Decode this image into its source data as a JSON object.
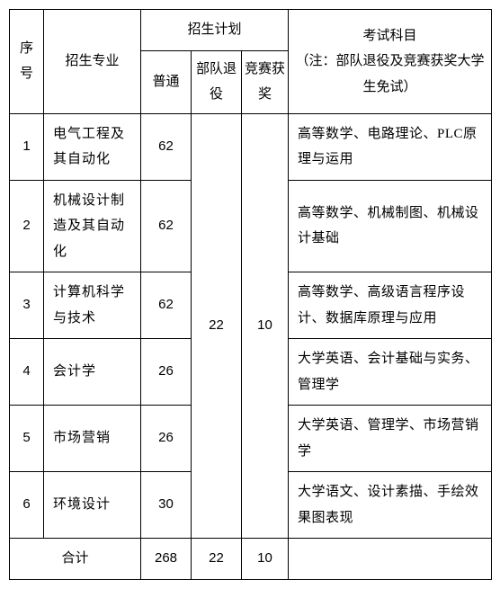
{
  "headers": {
    "seq": "序号",
    "major": "招生专业",
    "plan": "招生计划",
    "normal": "普通",
    "retired": "部队退役",
    "award": "竞赛获奖",
    "subject": "考试科目",
    "subject_note": "（注：部队退役及竞赛获奖大学生免试）"
  },
  "rows": [
    {
      "seq": "1",
      "major": "电气工程及其自动化",
      "normal": "62",
      "subject": "高等数学、电路理论、PLC原理与运用"
    },
    {
      "seq": "2",
      "major": "机械设计制造及其自动化",
      "normal": "62",
      "subject": "高等数学、机械制图、机械设计基础"
    },
    {
      "seq": "3",
      "major": "计算机科学与技术",
      "normal": "62",
      "subject": "高等数学、高级语言程序设计、数据库原理与应用"
    },
    {
      "seq": "4",
      "major": "会计学",
      "normal": "26",
      "subject": "大学英语、会计基础与实务、管理学"
    },
    {
      "seq": "5",
      "major": "市场营销",
      "normal": "26",
      "subject": "大学英语、管理学、市场营销学"
    },
    {
      "seq": "6",
      "major": "环境设计",
      "normal": "30",
      "subject": "大学语文、设计素描、手绘效果图表现"
    }
  ],
  "shared": {
    "retired": "22",
    "award": "10"
  },
  "totals": {
    "label": "合计",
    "normal": "268",
    "retired": "22",
    "award": "10"
  }
}
